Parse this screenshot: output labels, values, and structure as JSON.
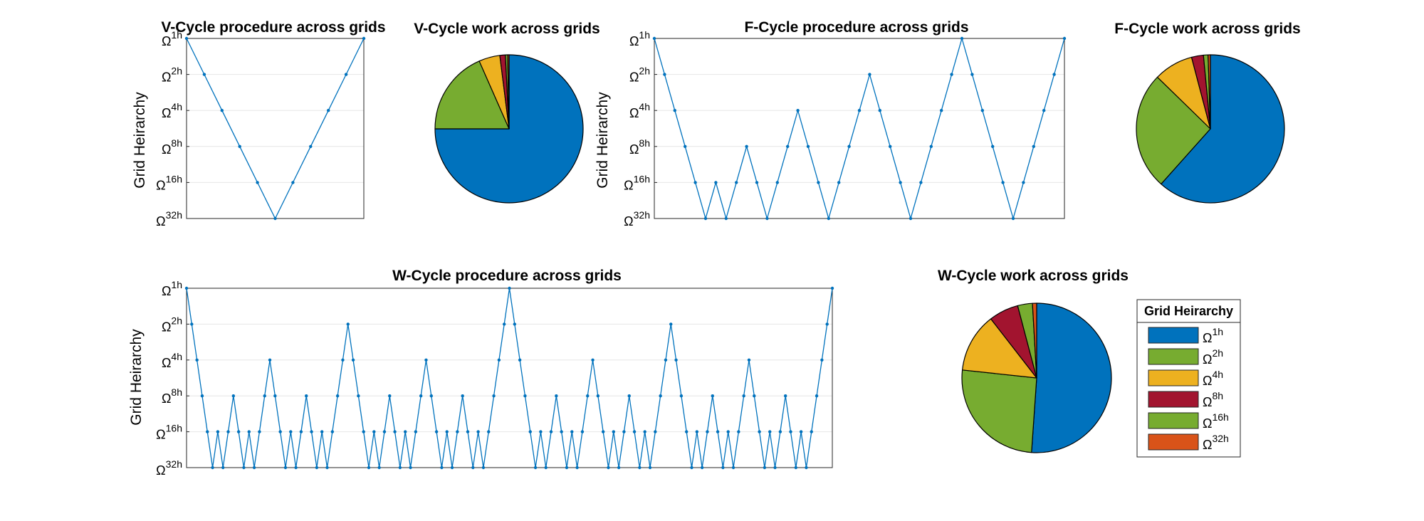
{
  "figure": {
    "background": "#ffffff",
    "line_color": "#0072BD",
    "grid_color": "#e6e6e6"
  },
  "legend": {
    "title": "Grid Heirarchy",
    "entries": [
      {
        "base": "Ω",
        "sup": "1h",
        "color": "#0072BD"
      },
      {
        "base": "Ω",
        "sup": "2h",
        "color": "#77AC30"
      },
      {
        "base": "Ω",
        "sup": "4h",
        "color": "#EDB120"
      },
      {
        "base": "Ω",
        "sup": "8h",
        "color": "#A2142F"
      },
      {
        "base": "Ω",
        "sup": "16h",
        "color": "#77AC30"
      },
      {
        "base": "Ω",
        "sup": "32h",
        "color": "#D95319"
      }
    ]
  },
  "chart_data": [
    {
      "id": "v-line",
      "type": "line",
      "title": "V-Cycle procedure across grids",
      "ylabel": "Grid Heirarchy",
      "xlabel": "",
      "yticks": [
        {
          "base": "Ω",
          "sup": "1h"
        },
        {
          "base": "Ω",
          "sup": "2h"
        },
        {
          "base": "Ω",
          "sup": "4h"
        },
        {
          "base": "Ω",
          "sup": "8h"
        },
        {
          "base": "Ω",
          "sup": "16h"
        },
        {
          "base": "Ω",
          "sup": "32h"
        }
      ],
      "ylim": [
        1,
        6
      ],
      "y_reversed": true,
      "grid": true,
      "marker": "dot",
      "values": [
        1,
        2,
        3,
        4,
        5,
        6,
        5,
        4,
        3,
        2,
        1
      ]
    },
    {
      "id": "v-pie",
      "type": "pie",
      "title": "V-Cycle work across grids",
      "start_angle_deg": 0,
      "slices": [
        {
          "label": "Ω1h",
          "value": 75.0,
          "color": "#0072BD"
        },
        {
          "label": "Ω2h",
          "value": 18.4,
          "color": "#77AC30"
        },
        {
          "label": "Ω4h",
          "value": 4.6,
          "color": "#EDB120"
        },
        {
          "label": "Ω8h",
          "value": 1.2,
          "color": "#A2142F"
        },
        {
          "label": "Ω16h",
          "value": 0.5,
          "color": "#77AC30"
        },
        {
          "label": "Ω32h",
          "value": 0.3,
          "color": "#D95319"
        }
      ]
    },
    {
      "id": "f-line",
      "type": "line",
      "title": "F-Cycle procedure across grids",
      "ylabel": "Grid Heirarchy",
      "xlabel": "",
      "yticks": [
        {
          "base": "Ω",
          "sup": "1h"
        },
        {
          "base": "Ω",
          "sup": "2h"
        },
        {
          "base": "Ω",
          "sup": "4h"
        },
        {
          "base": "Ω",
          "sup": "8h"
        },
        {
          "base": "Ω",
          "sup": "16h"
        },
        {
          "base": "Ω",
          "sup": "32h"
        }
      ],
      "ylim": [
        1,
        6
      ],
      "y_reversed": true,
      "grid": true,
      "marker": "dot",
      "values": [
        1,
        2,
        3,
        4,
        5,
        6,
        5,
        6,
        5,
        4,
        5,
        6,
        5,
        4,
        3,
        4,
        5,
        6,
        5,
        4,
        3,
        2,
        3,
        4,
        5,
        6,
        5,
        4,
        3,
        2,
        1,
        2,
        3,
        4,
        5,
        6,
        5,
        4,
        3,
        2,
        1
      ]
    },
    {
      "id": "f-pie",
      "type": "pie",
      "title": "F-Cycle work across grids",
      "start_angle_deg": 0,
      "slices": [
        {
          "label": "Ω1h",
          "value": 61.6,
          "color": "#0072BD"
        },
        {
          "label": "Ω2h",
          "value": 25.7,
          "color": "#77AC30"
        },
        {
          "label": "Ω4h",
          "value": 8.6,
          "color": "#EDB120"
        },
        {
          "label": "Ω8h",
          "value": 2.6,
          "color": "#A2142F"
        },
        {
          "label": "Ω16h",
          "value": 1.0,
          "color": "#77AC30"
        },
        {
          "label": "Ω32h",
          "value": 0.5,
          "color": "#D95319"
        }
      ]
    },
    {
      "id": "w-line",
      "type": "line",
      "title": "W-Cycle procedure across grids",
      "ylabel": "Grid Heirarchy",
      "xlabel": "",
      "yticks": [
        {
          "base": "Ω",
          "sup": "1h"
        },
        {
          "base": "Ω",
          "sup": "2h"
        },
        {
          "base": "Ω",
          "sup": "4h"
        },
        {
          "base": "Ω",
          "sup": "8h"
        },
        {
          "base": "Ω",
          "sup": "16h"
        },
        {
          "base": "Ω",
          "sup": "32h"
        }
      ],
      "ylim": [
        1,
        6
      ],
      "y_reversed": true,
      "grid": true,
      "marker": "dot",
      "values": [
        1,
        2,
        3,
        4,
        5,
        6,
        5,
        6,
        5,
        4,
        5,
        6,
        5,
        6,
        5,
        4,
        3,
        4,
        5,
        6,
        5,
        6,
        5,
        4,
        5,
        6,
        5,
        6,
        5,
        4,
        3,
        2,
        3,
        4,
        5,
        6,
        5,
        6,
        5,
        4,
        5,
        6,
        5,
        6,
        5,
        4,
        3,
        4,
        5,
        6,
        5,
        6,
        5,
        4,
        5,
        6,
        5,
        6,
        5,
        4,
        3,
        2,
        1,
        2,
        3,
        4,
        5,
        6,
        5,
        6,
        5,
        4,
        5,
        6,
        5,
        6,
        5,
        4,
        3,
        4,
        5,
        6,
        5,
        6,
        5,
        4,
        5,
        6,
        5,
        6,
        5,
        4,
        3,
        2,
        3,
        4,
        5,
        6,
        5,
        6,
        5,
        4,
        5,
        6,
        5,
        6,
        5,
        4,
        3,
        4,
        5,
        6,
        5,
        6,
        5,
        4,
        5,
        6,
        5,
        6,
        5,
        4,
        3,
        2,
        1
      ]
    },
    {
      "id": "w-pie",
      "type": "pie",
      "title": "W-Cycle work across grids",
      "start_angle_deg": 0,
      "slices": [
        {
          "label": "Ω1h",
          "value": 51.1,
          "color": "#0072BD"
        },
        {
          "label": "Ω2h",
          "value": 25.6,
          "color": "#77AC30"
        },
        {
          "label": "Ω4h",
          "value": 12.8,
          "color": "#EDB120"
        },
        {
          "label": "Ω8h",
          "value": 6.4,
          "color": "#A2142F"
        },
        {
          "label": "Ω16h",
          "value": 3.2,
          "color": "#77AC30"
        },
        {
          "label": "Ω32h",
          "value": 0.9,
          "color": "#D95319"
        }
      ]
    }
  ]
}
